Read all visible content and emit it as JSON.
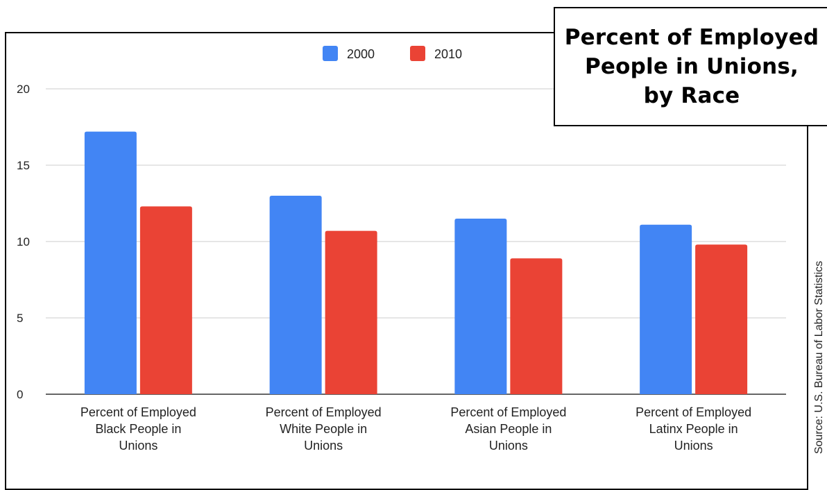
{
  "source_note": "Source: U.S. Bureau of Labor Statistics",
  "chart_data": {
    "type": "bar",
    "title": "Percent of Employed\nPeople in Unions,\nby Race",
    "categories": [
      [
        "Percent of Employed",
        "Black People in",
        "Unions"
      ],
      [
        "Percent of Employed",
        "White People in",
        "Unions"
      ],
      [
        "Percent of Employed",
        "Asian People in",
        "Unions"
      ],
      [
        "Percent of Employed",
        "Latinx People in",
        "Unions"
      ]
    ],
    "series": [
      {
        "name": "2000",
        "color": "#4285f4",
        "values": [
          17.2,
          13.0,
          11.5,
          11.1
        ]
      },
      {
        "name": "2010",
        "color": "#ea4335",
        "values": [
          12.3,
          10.7,
          8.9,
          9.8
        ]
      }
    ],
    "ylim": [
      0,
      20
    ],
    "yticks": [
      0,
      5,
      10,
      15,
      20
    ],
    "grid": true,
    "legend_position": "top"
  }
}
